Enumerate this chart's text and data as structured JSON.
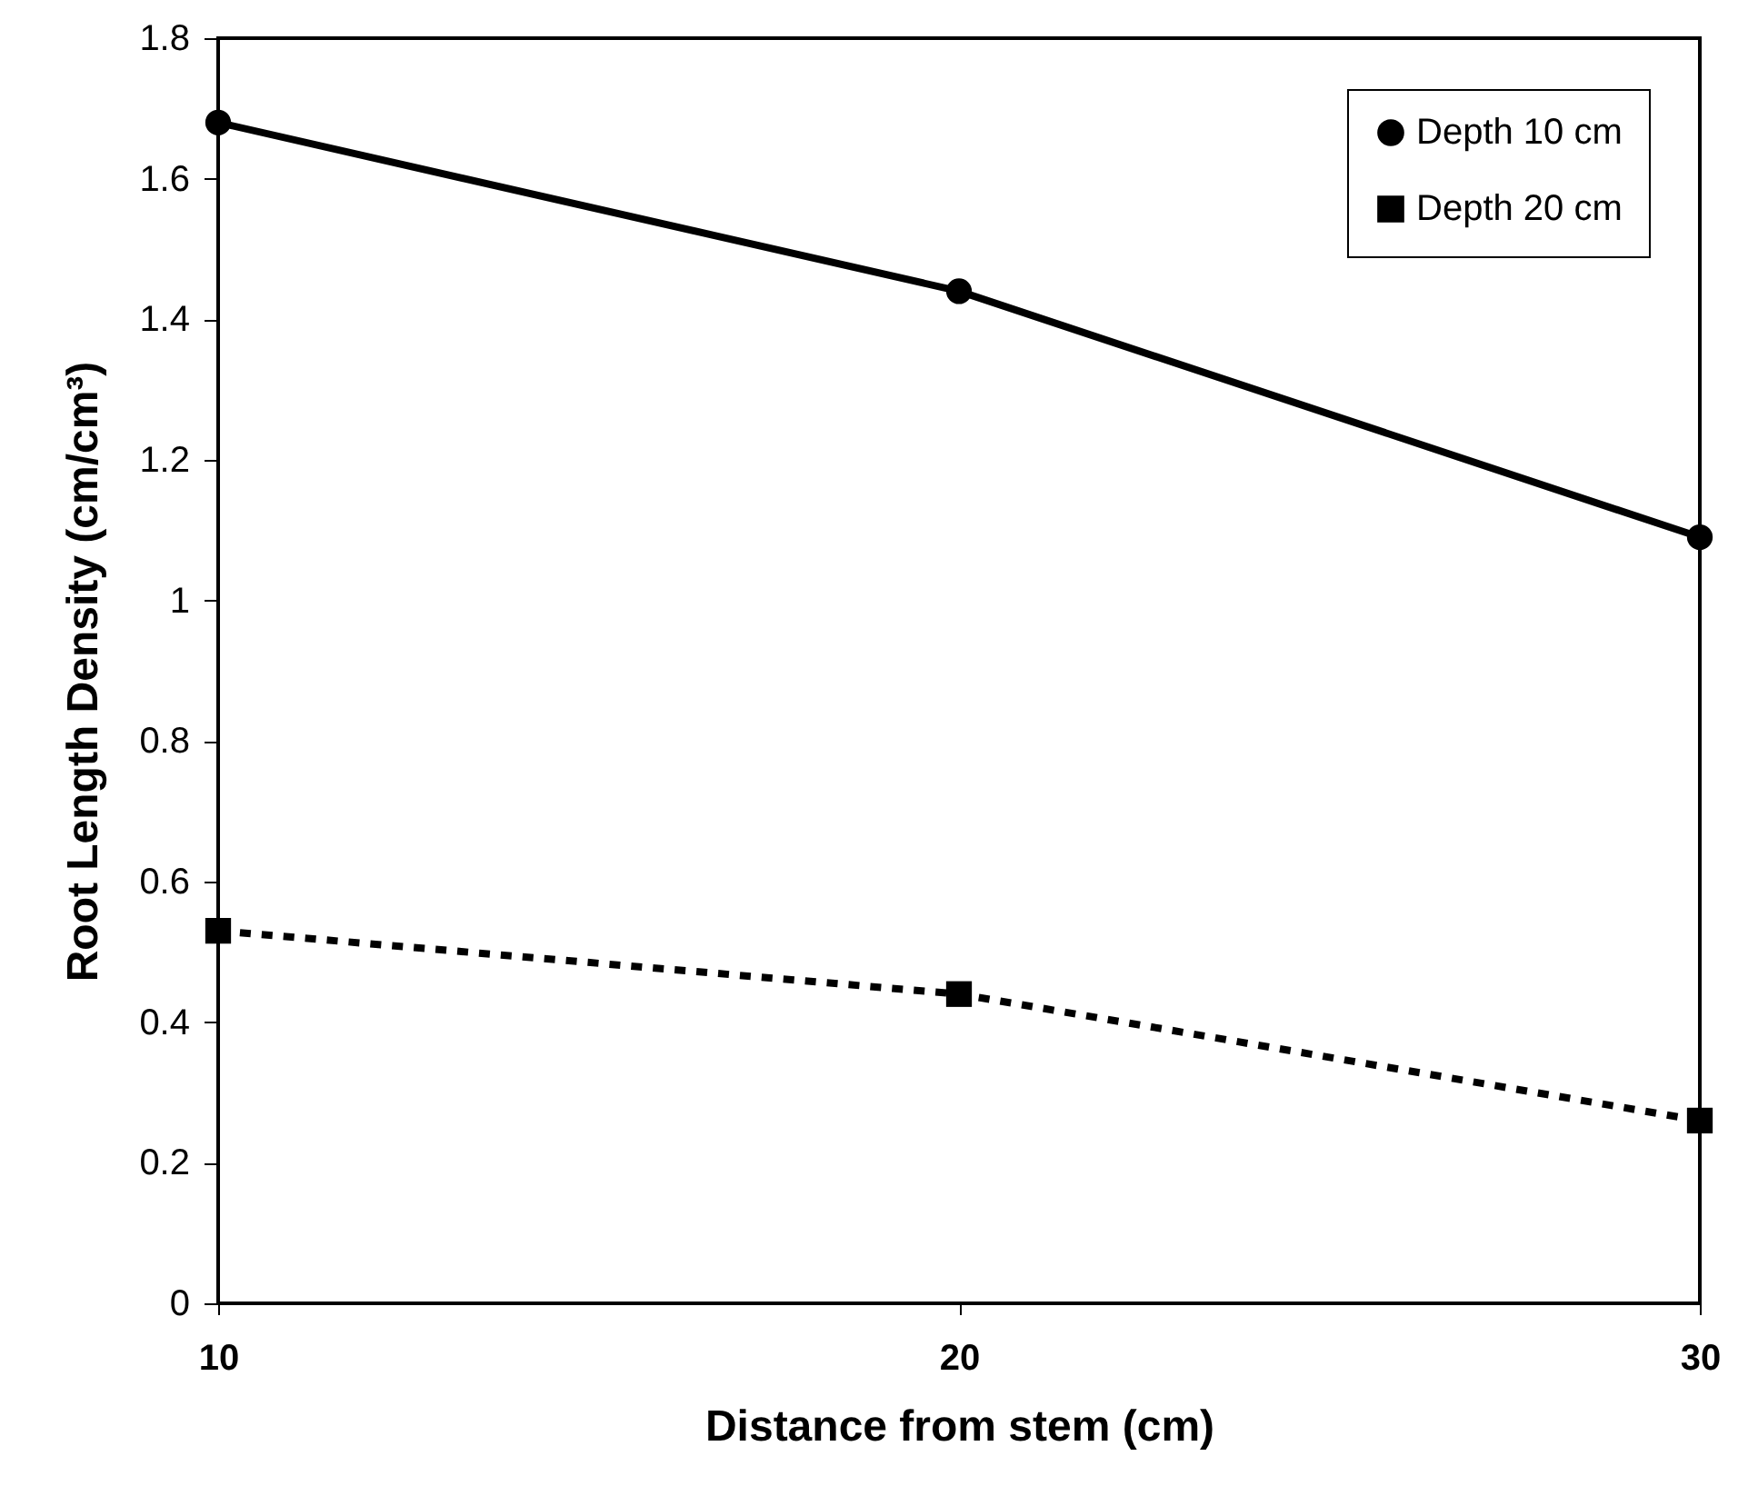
{
  "chart_data": {
    "type": "line",
    "xlabel": "Distance from stem (cm)",
    "ylabel": "Root Length Density (cm/cm³)",
    "x": [
      10,
      20,
      30
    ],
    "series": [
      {
        "name": "Depth 10 cm",
        "color": "#000000",
        "values": [
          1.68,
          1.44,
          1.09
        ],
        "marker": "circle",
        "line_style": "solid"
      },
      {
        "name": "Depth 20 cm",
        "color": "#000000",
        "values": [
          0.53,
          0.44,
          0.26
        ],
        "marker": "square",
        "line_style": "dashed"
      }
    ],
    "xlim": [
      10,
      30
    ],
    "xticks": [
      10,
      20,
      30
    ],
    "ylim": [
      0,
      1.8
    ],
    "yticks": [
      0,
      0.2,
      0.4,
      0.6,
      0.8,
      1,
      1.2,
      1.4,
      1.6,
      1.8
    ],
    "grid": false,
    "legend": "top right"
  }
}
